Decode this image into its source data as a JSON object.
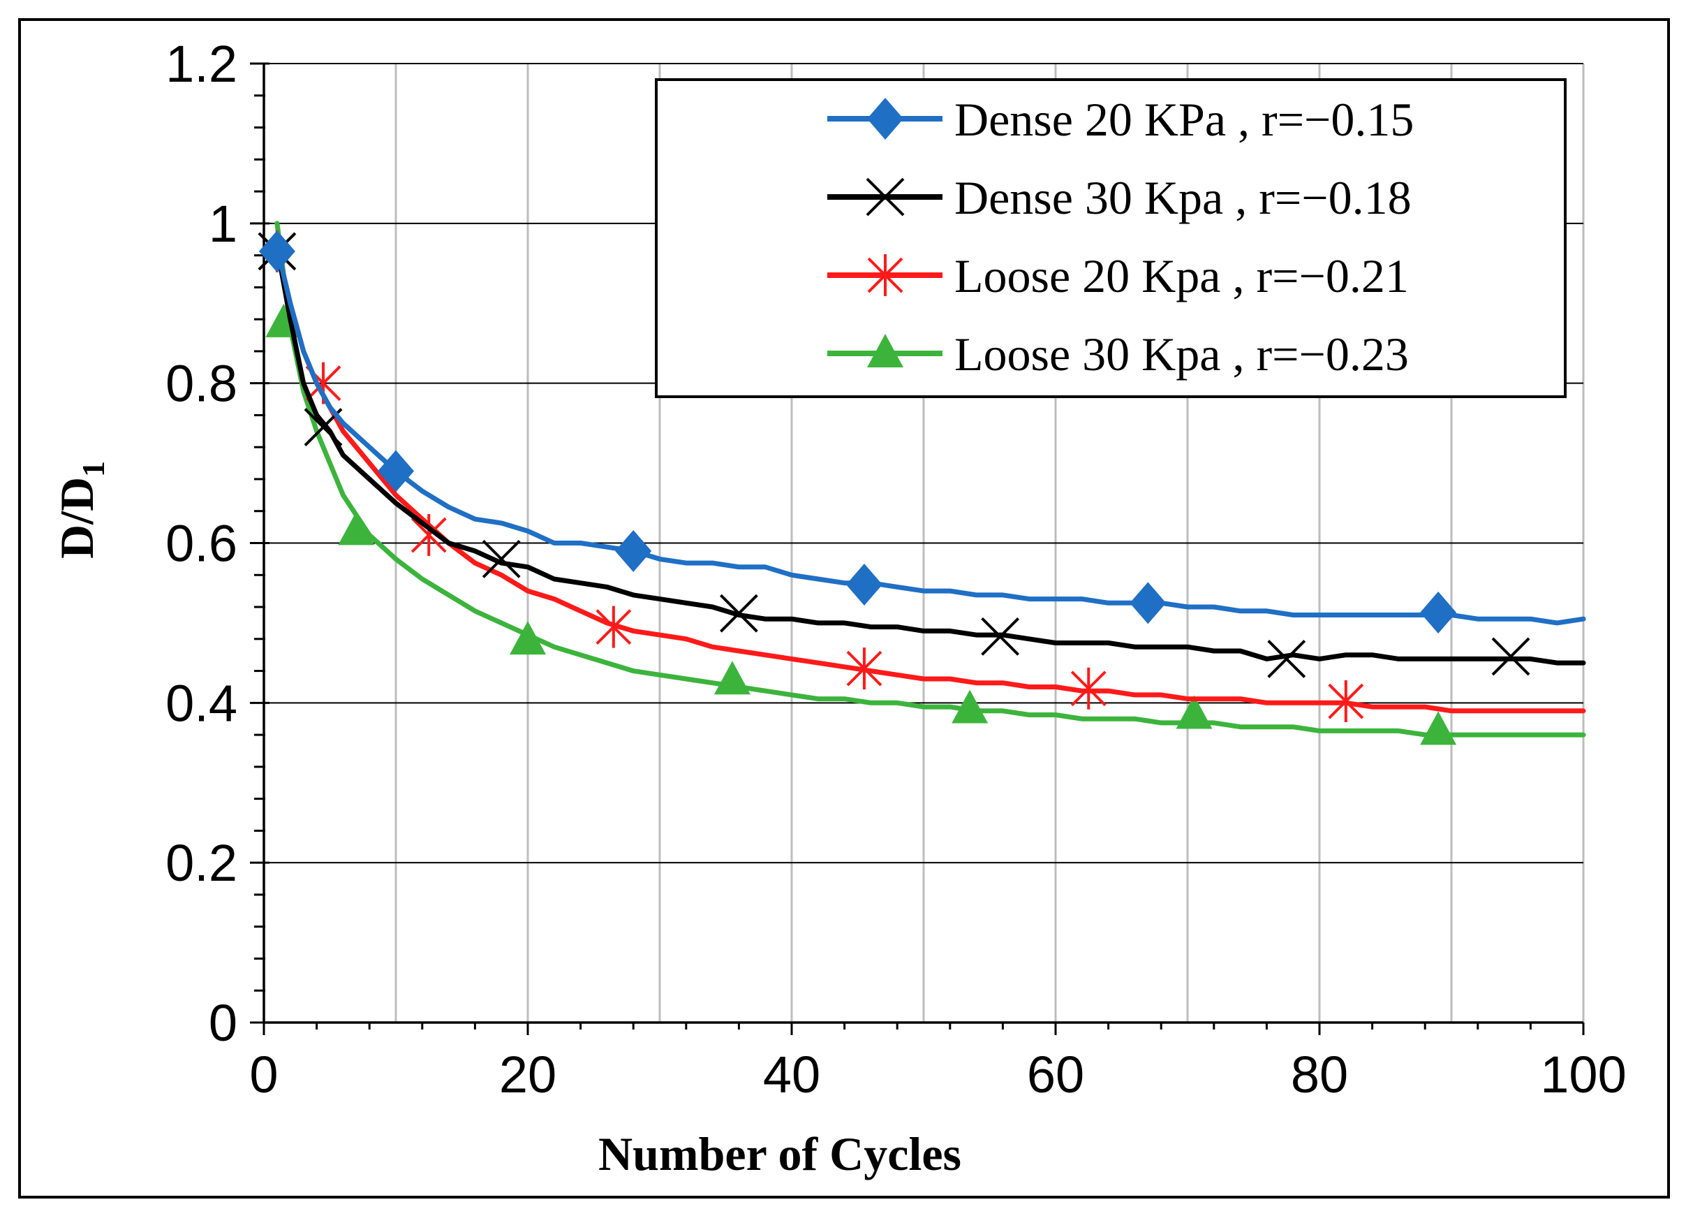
{
  "chart_data": {
    "type": "line",
    "xlabel": "Number of Cycles",
    "ylabel_main": "D/D",
    "ylabel_sub": "1",
    "xlim": [
      0,
      100
    ],
    "ylim": [
      0,
      1.2
    ],
    "x_ticks": [
      0,
      20,
      40,
      60,
      80,
      100
    ],
    "y_ticks": [
      0,
      0.2,
      0.4,
      0.6,
      0.8,
      1,
      1.2
    ],
    "x_tick_labels": [
      "0",
      "20",
      "40",
      "60",
      "80",
      "100"
    ],
    "y_tick_labels": [
      "0",
      "0.2",
      "0.4",
      "0.6",
      "0.8",
      "1",
      "1.2"
    ],
    "grid": "x: major every 10 (gray), y: every 0.2 (dark)",
    "legend_position": "top-right",
    "series": [
      {
        "name": "Dense 20 KPa",
        "r_label": "r=−0.15",
        "color": "#1f6fc5",
        "marker": "diamond",
        "x": [
          1,
          2,
          3,
          4,
          5,
          6,
          8,
          10,
          12,
          14,
          16,
          18,
          20,
          22,
          24,
          26,
          28,
          30,
          32,
          34,
          36,
          38,
          40,
          42,
          44,
          46,
          48,
          50,
          52,
          54,
          56,
          58,
          60,
          62,
          64,
          66,
          68,
          70,
          72,
          74,
          76,
          78,
          80,
          82,
          84,
          86,
          88,
          90,
          92,
          94,
          96,
          98,
          100
        ],
        "y": [
          0.97,
          0.9,
          0.84,
          0.8,
          0.77,
          0.75,
          0.72,
          0.69,
          0.665,
          0.645,
          0.63,
          0.625,
          0.615,
          0.6,
          0.6,
          0.595,
          0.59,
          0.58,
          0.575,
          0.575,
          0.57,
          0.57,
          0.56,
          0.555,
          0.55,
          0.55,
          0.545,
          0.54,
          0.54,
          0.535,
          0.535,
          0.53,
          0.53,
          0.53,
          0.525,
          0.525,
          0.525,
          0.52,
          0.52,
          0.515,
          0.515,
          0.51,
          0.51,
          0.51,
          0.51,
          0.51,
          0.51,
          0.51,
          0.505,
          0.505,
          0.505,
          0.5,
          0.505
        ],
        "markers_x": [
          1,
          10,
          28,
          45.5,
          67,
          89
        ],
        "markers_y": [
          0.965,
          0.69,
          0.59,
          0.548,
          0.525,
          0.513
        ]
      },
      {
        "name": "Dense 30 Kpa",
        "r_label": "r=−0.18",
        "color": "#000000",
        "marker": "x",
        "x": [
          1,
          2,
          3,
          4,
          5,
          6,
          8,
          10,
          12,
          14,
          16,
          18,
          20,
          22,
          24,
          26,
          28,
          30,
          32,
          34,
          36,
          38,
          40,
          42,
          44,
          46,
          48,
          50,
          52,
          54,
          56,
          58,
          60,
          62,
          64,
          66,
          68,
          70,
          72,
          74,
          76,
          78,
          80,
          82,
          84,
          86,
          88,
          90,
          92,
          94,
          96,
          98,
          100
        ],
        "y": [
          0.97,
          0.88,
          0.8,
          0.76,
          0.74,
          0.71,
          0.68,
          0.65,
          0.625,
          0.6,
          0.59,
          0.575,
          0.57,
          0.555,
          0.55,
          0.545,
          0.535,
          0.53,
          0.525,
          0.52,
          0.51,
          0.505,
          0.505,
          0.5,
          0.5,
          0.495,
          0.495,
          0.49,
          0.49,
          0.485,
          0.485,
          0.48,
          0.475,
          0.475,
          0.475,
          0.47,
          0.47,
          0.47,
          0.465,
          0.465,
          0.455,
          0.46,
          0.455,
          0.46,
          0.46,
          0.455,
          0.455,
          0.455,
          0.455,
          0.455,
          0.455,
          0.45,
          0.45
        ],
        "markers_x": [
          1,
          4.5,
          18,
          36,
          55.8,
          77.5,
          94.5
        ],
        "markers_y": [
          0.965,
          0.745,
          0.58,
          0.512,
          0.483,
          0.455,
          0.458
        ]
      },
      {
        "name": "Loose 20 Kpa",
        "r_label": "r=−0.21",
        "color": "#ff1a1a",
        "marker": "asterisk",
        "x": [
          1,
          2,
          3,
          4,
          5,
          6,
          8,
          10,
          12,
          14,
          16,
          18,
          20,
          22,
          24,
          26,
          28,
          30,
          32,
          34,
          36,
          38,
          40,
          42,
          44,
          46,
          48,
          50,
          52,
          54,
          56,
          58,
          60,
          62,
          64,
          66,
          68,
          70,
          72,
          74,
          76,
          78,
          80,
          82,
          84,
          86,
          88,
          90,
          92,
          94,
          96,
          98,
          100
        ],
        "y": [
          0.97,
          0.9,
          0.84,
          0.8,
          0.77,
          0.74,
          0.7,
          0.66,
          0.63,
          0.6,
          0.575,
          0.56,
          0.54,
          0.53,
          0.515,
          0.5,
          0.49,
          0.485,
          0.48,
          0.47,
          0.465,
          0.46,
          0.455,
          0.45,
          0.445,
          0.44,
          0.435,
          0.43,
          0.43,
          0.425,
          0.425,
          0.42,
          0.42,
          0.415,
          0.415,
          0.41,
          0.41,
          0.405,
          0.405,
          0.405,
          0.4,
          0.4,
          0.4,
          0.4,
          0.395,
          0.395,
          0.395,
          0.39,
          0.39,
          0.39,
          0.39,
          0.39,
          0.39
        ],
        "markers_x": [
          1,
          4.5,
          12.5,
          26.5,
          45.5,
          62.5,
          82
        ],
        "markers_y": [
          0.965,
          0.8,
          0.61,
          0.495,
          0.443,
          0.418,
          0.402
        ]
      },
      {
        "name": "Loose 30 Kpa",
        "r_label": "r=−0.23",
        "color": "#3cb43c",
        "marker": "triangle",
        "x": [
          1,
          2,
          3,
          4,
          5,
          6,
          8,
          10,
          12,
          14,
          16,
          18,
          20,
          22,
          24,
          26,
          28,
          30,
          32,
          34,
          36,
          38,
          40,
          42,
          44,
          46,
          48,
          50,
          52,
          54,
          56,
          58,
          60,
          62,
          64,
          66,
          68,
          70,
          72,
          74,
          76,
          78,
          80,
          82,
          84,
          86,
          88,
          90,
          92,
          94,
          96,
          98,
          100
        ],
        "y": [
          1.0,
          0.87,
          0.79,
          0.74,
          0.7,
          0.66,
          0.61,
          0.58,
          0.555,
          0.535,
          0.515,
          0.5,
          0.485,
          0.47,
          0.46,
          0.45,
          0.44,
          0.435,
          0.43,
          0.425,
          0.42,
          0.415,
          0.41,
          0.405,
          0.405,
          0.4,
          0.4,
          0.395,
          0.395,
          0.39,
          0.39,
          0.385,
          0.385,
          0.38,
          0.38,
          0.38,
          0.375,
          0.375,
          0.375,
          0.37,
          0.37,
          0.37,
          0.365,
          0.365,
          0.365,
          0.365,
          0.36,
          0.36,
          0.36,
          0.36,
          0.36,
          0.36,
          0.36
        ],
        "markers_x": [
          1.5,
          7,
          20,
          35.5,
          53.5,
          70.5,
          89
        ],
        "markers_y": [
          0.875,
          0.615,
          0.478,
          0.428,
          0.392,
          0.385,
          0.365
        ]
      }
    ]
  }
}
